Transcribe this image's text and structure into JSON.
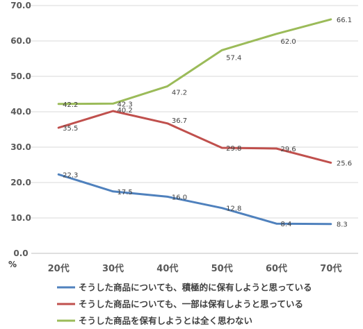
{
  "chart_data": {
    "type": "line",
    "title": "",
    "xlabel": "",
    "ylabel": "",
    "y_unit": "%",
    "categories": [
      "20代",
      "30代",
      "40代",
      "50代",
      "60代",
      "70代"
    ],
    "ylim": [
      0,
      70
    ],
    "yticks": [
      "0.0",
      "10.0",
      "20.0",
      "30.0",
      "40.0",
      "50.0",
      "60.0",
      "70.0"
    ],
    "grid": true,
    "legend_position": "bottom",
    "series": [
      {
        "name": "そうした商品についても、積極的に保有しようと思っている",
        "color": "#4F81BD",
        "values": [
          22.3,
          17.5,
          16.0,
          12.8,
          8.4,
          8.3
        ],
        "labels": [
          "22.3",
          "17.5",
          "16.0",
          "12.8",
          "8.4",
          "8.3"
        ]
      },
      {
        "name": "そうした商品についても、一部は保有しようと思っている",
        "color": "#C0504D",
        "values": [
          35.5,
          40.2,
          36.7,
          29.8,
          29.6,
          25.6
        ],
        "labels": [
          "35.5",
          "40.2",
          "36.7",
          "29.8",
          "29.6",
          "25.6"
        ]
      },
      {
        "name": "そうした商品を保有しようとは全く思わない",
        "color": "#9BBB59",
        "values": [
          42.2,
          42.3,
          47.2,
          57.4,
          62.0,
          66.1
        ],
        "labels": [
          "42.2",
          "42.3",
          "47.2",
          "57.4",
          "62.0",
          "66.1"
        ]
      }
    ]
  }
}
